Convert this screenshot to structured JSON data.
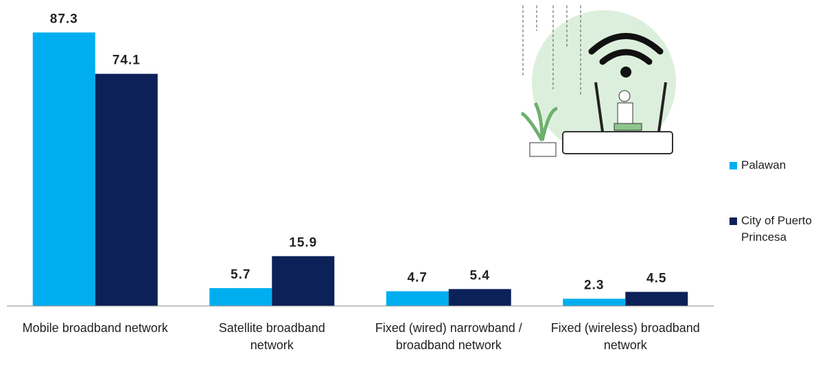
{
  "chart_data": {
    "type": "bar",
    "categories": [
      "Mobile broadband network",
      "Satellite broadband network",
      "Fixed (wired) narrowband / broadband network",
      "Fixed (wireless) broadband network"
    ],
    "series": [
      {
        "name": "Palawan",
        "color": "#00aeef",
        "values": [
          87.3,
          5.7,
          4.7,
          2.3
        ]
      },
      {
        "name": "City of Puerto Princesa",
        "color": "#0b2158",
        "values": [
          74.1,
          15.9,
          5.4,
          4.5
        ]
      }
    ],
    "ylim": [
      0,
      90
    ],
    "legend": "right",
    "grid": false
  }
}
